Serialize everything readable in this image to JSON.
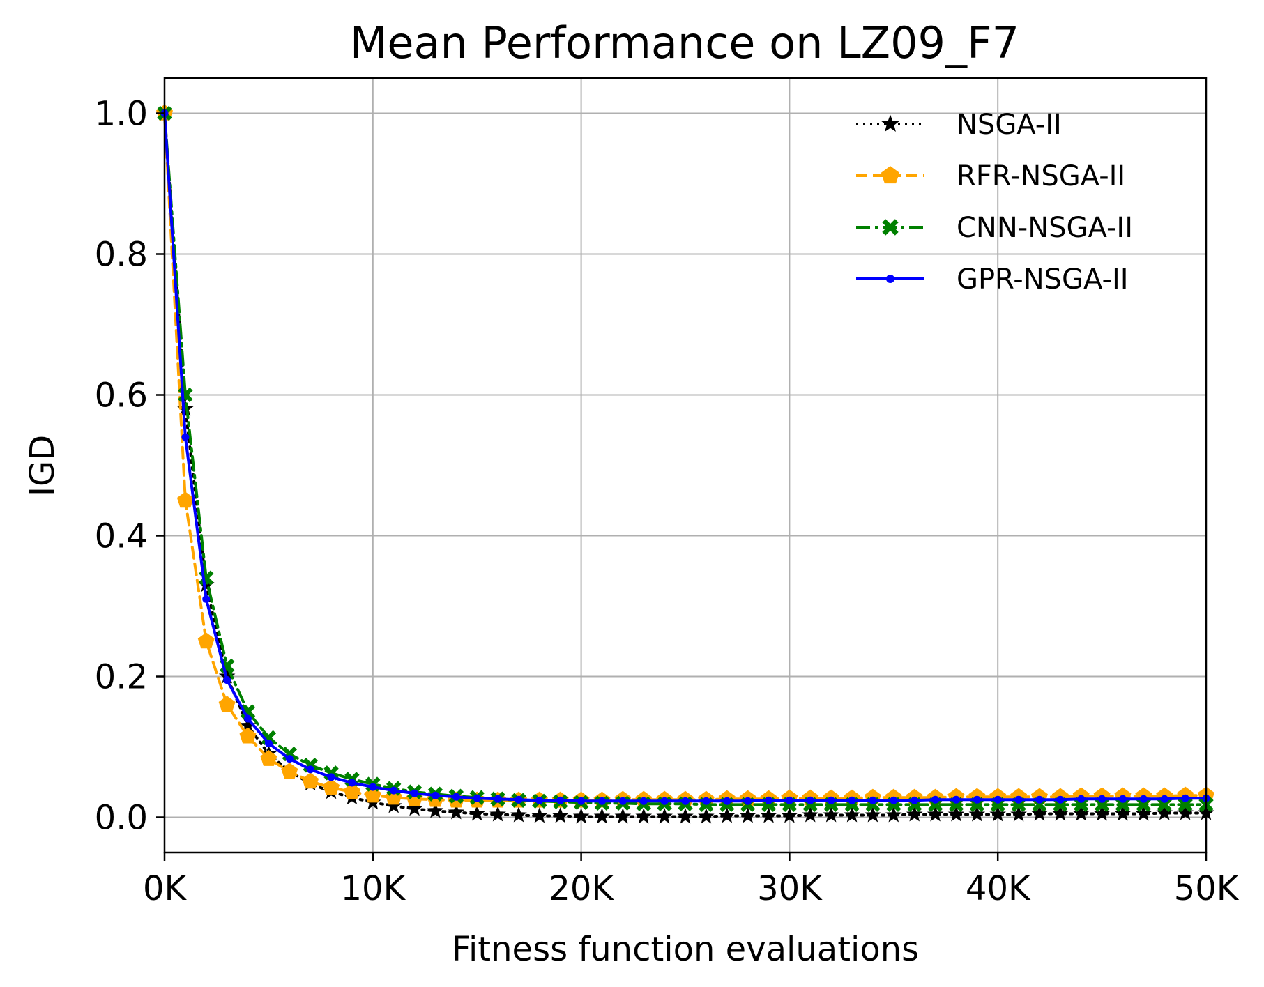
{
  "chart_data": {
    "type": "line",
    "title": "Mean Performance on LZ09_F7",
    "xlabel": "Fitness function evaluations",
    "ylabel": "IGD",
    "xlim": [
      0,
      50000
    ],
    "ylim": [
      -0.05,
      1.05
    ],
    "grid": true,
    "legend_position": "top-right",
    "x_ticks": [
      {
        "value": 0,
        "label": "0K"
      },
      {
        "value": 10000,
        "label": "10K"
      },
      {
        "value": 20000,
        "label": "20K"
      },
      {
        "value": 30000,
        "label": "30K"
      },
      {
        "value": 40000,
        "label": "40K"
      },
      {
        "value": 50000,
        "label": "50K"
      }
    ],
    "y_ticks": [
      {
        "value": 0.0,
        "label": "0.0"
      },
      {
        "value": 0.2,
        "label": "0.2"
      },
      {
        "value": 0.4,
        "label": "0.4"
      },
      {
        "value": 0.6,
        "label": "0.6"
      },
      {
        "value": 0.8,
        "label": "0.8"
      },
      {
        "value": 1.0,
        "label": "1.0"
      }
    ],
    "x": [
      0,
      1000,
      2000,
      3000,
      4000,
      5000,
      6000,
      7000,
      8000,
      9000,
      10000,
      11000,
      12000,
      13000,
      14000,
      15000,
      16000,
      17000,
      18000,
      19000,
      20000,
      21000,
      22000,
      23000,
      24000,
      25000,
      26000,
      27000,
      28000,
      29000,
      30000,
      31000,
      32000,
      33000,
      34000,
      35000,
      36000,
      37000,
      38000,
      39000,
      40000,
      41000,
      42000,
      43000,
      44000,
      45000,
      46000,
      47000,
      48000,
      49000,
      50000
    ],
    "series": [
      {
        "name": "NSGA-II",
        "color": "#000000",
        "linestyle": "dotted",
        "marker": "star",
        "values": [
          1.0,
          0.58,
          0.33,
          0.2,
          0.13,
          0.09,
          0.065,
          0.048,
          0.036,
          0.028,
          0.021,
          0.016,
          0.012,
          0.009,
          0.007,
          0.005,
          0.004,
          0.003,
          0.002,
          0.002,
          0.001,
          0.001,
          0.001,
          0.001,
          0.001,
          0.001,
          0.001,
          0.002,
          0.002,
          0.002,
          0.002,
          0.003,
          0.003,
          0.003,
          0.003,
          0.003,
          0.004,
          0.004,
          0.004,
          0.004,
          0.004,
          0.004,
          0.005,
          0.005,
          0.005,
          0.005,
          0.005,
          0.005,
          0.006,
          0.006,
          0.006
        ]
      },
      {
        "name": "RFR-NSGA-II",
        "color": "#FFA500",
        "linestyle": "dashed",
        "marker": "pentagon",
        "values": [
          1.0,
          0.45,
          0.25,
          0.16,
          0.115,
          0.083,
          0.065,
          0.051,
          0.042,
          0.036,
          0.031,
          0.028,
          0.026,
          0.025,
          0.024,
          0.024,
          0.024,
          0.024,
          0.024,
          0.024,
          0.024,
          0.024,
          0.025,
          0.025,
          0.025,
          0.025,
          0.025,
          0.026,
          0.026,
          0.026,
          0.027,
          0.027,
          0.027,
          0.027,
          0.028,
          0.028,
          0.028,
          0.028,
          0.029,
          0.029,
          0.029,
          0.029,
          0.029,
          0.029,
          0.03,
          0.03,
          0.03,
          0.03,
          0.03,
          0.031,
          0.031
        ]
      },
      {
        "name": "CNN-NSGA-II",
        "color": "#008000",
        "linestyle": "dashdot",
        "marker": "x-filled",
        "values": [
          1.0,
          0.6,
          0.34,
          0.215,
          0.15,
          0.113,
          0.09,
          0.074,
          0.063,
          0.054,
          0.047,
          0.041,
          0.036,
          0.033,
          0.03,
          0.028,
          0.026,
          0.024,
          0.023,
          0.022,
          0.021,
          0.02,
          0.02,
          0.019,
          0.019,
          0.019,
          0.018,
          0.018,
          0.018,
          0.018,
          0.018,
          0.018,
          0.018,
          0.018,
          0.018,
          0.018,
          0.018,
          0.018,
          0.018,
          0.018,
          0.018,
          0.018,
          0.018,
          0.018,
          0.018,
          0.018,
          0.018,
          0.018,
          0.018,
          0.018,
          0.018
        ]
      },
      {
        "name": "GPR-NSGA-II",
        "color": "#0000FF",
        "linestyle": "solid",
        "marker": "point",
        "values": [
          1.0,
          0.54,
          0.31,
          0.195,
          0.14,
          0.105,
          0.083,
          0.068,
          0.057,
          0.049,
          0.043,
          0.038,
          0.034,
          0.031,
          0.029,
          0.027,
          0.026,
          0.025,
          0.024,
          0.024,
          0.023,
          0.023,
          0.023,
          0.023,
          0.023,
          0.023,
          0.023,
          0.023,
          0.023,
          0.024,
          0.024,
          0.024,
          0.024,
          0.024,
          0.024,
          0.024,
          0.024,
          0.025,
          0.025,
          0.025,
          0.025,
          0.025,
          0.025,
          0.025,
          0.026,
          0.026,
          0.026,
          0.026,
          0.026,
          0.027,
          0.027
        ]
      }
    ]
  }
}
